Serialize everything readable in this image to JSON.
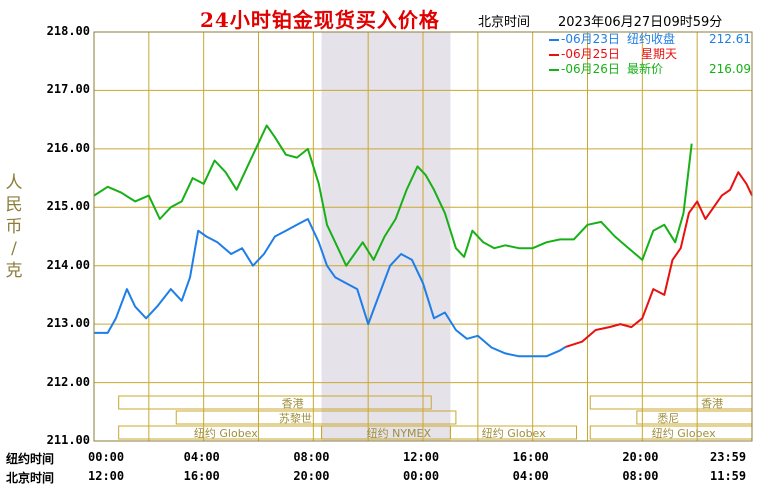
{
  "title": "24小时铂金现货买入价格",
  "timezone_label": "北京时间",
  "timestamp": "2023年06月27日09时59分",
  "ylabel_chars": [
    "人",
    "民",
    "币",
    "/",
    "克"
  ],
  "legend": [
    {
      "date": "-06月23日",
      "label": "纽约收盘",
      "value": "212.61",
      "color": "#1e7ee8"
    },
    {
      "date": "-06月25日",
      "label": "星期天",
      "value": "",
      "color": "#e81010"
    },
    {
      "date": "-06月26日",
      "label": "最新价",
      "value": "216.09",
      "color": "#17b017"
    }
  ],
  "row_labels": {
    "newyork": "纽约时间",
    "beijing": "北京时间"
  },
  "x_ticks_newyork": [
    "00:00",
    "04:00",
    "08:00",
    "12:00",
    "16:00",
    "20:00",
    "23:59"
  ],
  "x_ticks_beijing": [
    "12:00",
    "16:00",
    "20:00",
    "00:00",
    "04:00",
    "08:00",
    "11:59"
  ],
  "sessions": [
    {
      "name": "香港",
      "row": 1
    },
    {
      "name": "苏黎世",
      "row": 2
    },
    {
      "name": "纽约 Globex",
      "row": 3
    },
    {
      "name": "纽约 NYMEX",
      "row": 3
    },
    {
      "name": "纽约 Globex",
      "row": 3
    },
    {
      "name": "香港",
      "row": 1
    },
    {
      "name": "悉尼",
      "row": 2
    },
    {
      "name": "纽约 Globex",
      "row": 3
    }
  ],
  "colors": {
    "grid": "#c8a830",
    "axis": "#8b7d3a",
    "shade": "#e6e2ea",
    "title": "#e00000"
  },
  "chart_data": {
    "type": "line",
    "x_unit": "hours after 00:00 New York time",
    "ylim": [
      211,
      218
    ],
    "yticks": [
      "211.00",
      "212.00",
      "213.00",
      "214.00",
      "215.00",
      "216.00",
      "217.00",
      "218.00"
    ],
    "shaded_range_hours": [
      8.3,
      13
    ],
    "grid": true,
    "series": [
      {
        "name": "06月23日",
        "color": "#1e7ee8",
        "x": [
          0,
          0.5,
          0.8,
          1.2,
          1.5,
          1.9,
          2.3,
          2.8,
          3.2,
          3.5,
          3.8,
          4.1,
          4.5,
          5,
          5.4,
          5.8,
          6.2,
          6.6,
          7,
          7.4,
          7.8,
          8.2,
          8.5,
          8.8,
          9.2,
          9.6,
          10,
          10.4,
          10.8,
          11.2,
          11.6,
          12,
          12.4,
          12.8,
          13.2,
          13.6,
          14,
          14.5,
          15,
          15.5,
          16,
          16.5,
          17,
          17.2
        ],
        "y": [
          212.85,
          212.85,
          213.1,
          213.6,
          213.3,
          213.1,
          213.3,
          213.6,
          213.4,
          213.8,
          214.6,
          214.5,
          214.4,
          214.2,
          214.3,
          214.0,
          214.2,
          214.5,
          214.6,
          214.7,
          214.8,
          214.4,
          214.0,
          213.8,
          213.7,
          213.6,
          213.0,
          213.5,
          214.0,
          214.2,
          214.1,
          213.7,
          213.1,
          213.2,
          212.9,
          212.75,
          212.8,
          212.6,
          212.5,
          212.45,
          212.45,
          212.45,
          212.55,
          212.61
        ]
      },
      {
        "name": "06月25日",
        "color": "#e81010",
        "x": [
          17.2,
          17.8,
          18.3,
          18.8,
          19.2,
          19.6,
          20,
          20.4,
          20.8,
          21.1,
          21.4,
          21.7,
          22,
          22.3,
          22.6,
          22.9,
          23.2,
          23.5,
          23.8,
          24
        ],
        "y": [
          212.61,
          212.7,
          212.9,
          212.95,
          213.0,
          212.95,
          213.1,
          213.6,
          213.5,
          214.1,
          214.3,
          214.9,
          215.1,
          214.8,
          215.0,
          215.2,
          215.3,
          215.6,
          215.4,
          215.2
        ]
      },
      {
        "name": "06月26日",
        "color": "#17b017",
        "x": [
          0,
          0.5,
          1,
          1.5,
          2,
          2.4,
          2.8,
          3.2,
          3.6,
          4,
          4.4,
          4.8,
          5.2,
          5.6,
          6,
          6.3,
          6.6,
          7,
          7.4,
          7.8,
          8.2,
          8.5,
          8.9,
          9.2,
          9.5,
          9.8,
          10.2,
          10.6,
          11,
          11.4,
          11.8,
          12.1,
          12.4,
          12.8,
          13.2,
          13.5,
          13.8,
          14.2,
          14.6,
          15,
          15.5,
          16,
          16.5,
          17,
          17.5,
          18,
          18.5,
          19,
          19.5,
          20,
          20.4,
          20.8,
          21.2,
          21.5,
          21.8
        ],
        "y": [
          215.2,
          215.35,
          215.25,
          215.1,
          215.2,
          214.8,
          215.0,
          215.1,
          215.5,
          215.4,
          215.8,
          215.6,
          215.3,
          215.7,
          216.1,
          216.4,
          216.2,
          215.9,
          215.85,
          216.0,
          215.4,
          214.7,
          214.3,
          214.0,
          214.2,
          214.4,
          214.1,
          214.5,
          214.8,
          215.3,
          215.7,
          215.55,
          215.3,
          214.9,
          214.3,
          214.15,
          214.6,
          214.4,
          214.3,
          214.35,
          214.3,
          214.3,
          214.4,
          214.45,
          214.45,
          214.7,
          214.75,
          214.5,
          214.3,
          214.1,
          214.6,
          214.7,
          214.4,
          214.9,
          216.09
        ]
      }
    ]
  }
}
